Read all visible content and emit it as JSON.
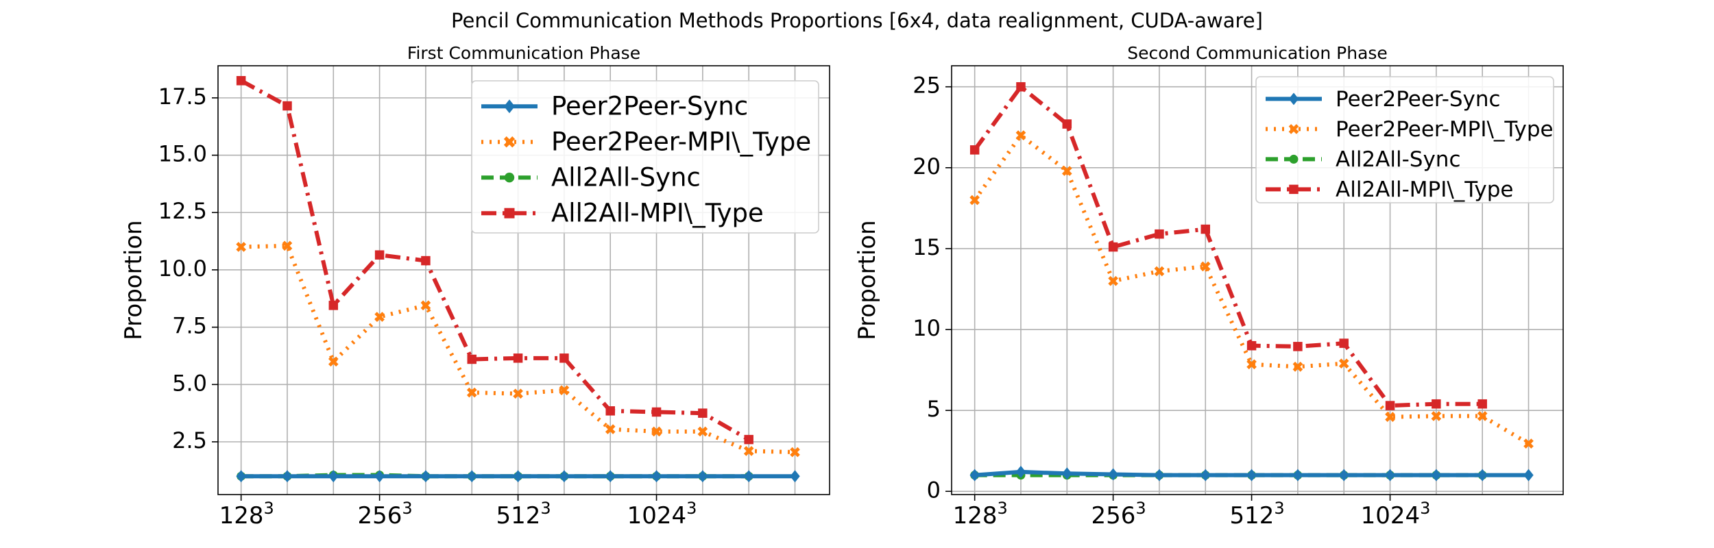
{
  "figure_title": "Pencil Communication Methods Proportions [6x4, data realignment, CUDA-aware]",
  "colors": {
    "Peer2Peer-Sync": "#1f77b4",
    "Peer2Peer-MPI\\_Type": "#ff7f0e",
    "All2All-Sync": "#2ca02c",
    "All2All-MPI\\_Type": "#d62728"
  },
  "chart_data": [
    {
      "type": "line",
      "title": "First Communication Phase",
      "xlabel": "",
      "ylabel": "Proportion",
      "x": [
        1,
        2,
        3,
        4,
        5,
        6,
        7,
        8,
        9,
        10,
        11,
        12,
        13
      ],
      "xticks": [
        1,
        4,
        7,
        10
      ],
      "xticklabels": [
        "128",
        "256",
        "512",
        "1024"
      ],
      "xtick_exponent": "3",
      "xlim": [
        0.5,
        13.75
      ],
      "ylim": [
        0.2,
        18.9
      ],
      "yticks": [
        2.5,
        5.0,
        7.5,
        10.0,
        12.5,
        15.0,
        17.5
      ],
      "yticklabels": [
        "2.5",
        "5.0",
        "7.5",
        "10.0",
        "12.5",
        "15.0",
        "17.5"
      ],
      "grid": true,
      "legend": "top-right",
      "series": [
        {
          "name": "Peer2Peer-Sync",
          "values": [
            1.0,
            1.0,
            1.0,
            1.0,
            1.0,
            1.0,
            1.0,
            1.0,
            1.0,
            1.0,
            1.0,
            1.0,
            1.0
          ]
        },
        {
          "name": "Peer2Peer-MPI\\_Type",
          "values": [
            11.0,
            11.05,
            6.0,
            7.95,
            8.45,
            4.65,
            4.6,
            4.75,
            3.05,
            2.95,
            2.95,
            2.1,
            2.05
          ]
        },
        {
          "name": "All2All-Sync",
          "values": [
            1.0,
            1.0,
            1.05,
            1.05,
            1.0,
            1.0,
            1.0,
            1.0,
            1.0,
            1.0,
            1.0,
            1.0,
            null
          ]
        },
        {
          "name": "All2All-MPI\\_Type",
          "values": [
            18.25,
            17.15,
            8.45,
            10.65,
            10.4,
            6.1,
            6.15,
            6.15,
            3.85,
            3.8,
            3.75,
            2.6,
            null
          ]
        }
      ]
    },
    {
      "type": "line",
      "title": "Second Communication Phase",
      "xlabel": "",
      "ylabel": "Proportion",
      "x": [
        1,
        2,
        3,
        4,
        5,
        6,
        7,
        8,
        9,
        10,
        11,
        12,
        13
      ],
      "xticks": [
        1,
        4,
        7,
        10
      ],
      "xticklabels": [
        "128",
        "256",
        "512",
        "1024"
      ],
      "xtick_exponent": "3",
      "xlim": [
        0.5,
        13.75
      ],
      "ylim": [
        -0.2,
        26.3
      ],
      "yticks": [
        0,
        5,
        10,
        15,
        20,
        25
      ],
      "yticklabels": [
        "0",
        "5",
        "10",
        "15",
        "20",
        "25"
      ],
      "grid": true,
      "legend": "top-right",
      "series": [
        {
          "name": "Peer2Peer-Sync",
          "values": [
            1.0,
            1.2,
            1.1,
            1.05,
            1.0,
            1.0,
            1.0,
            1.0,
            1.0,
            1.0,
            1.0,
            1.0,
            1.0
          ]
        },
        {
          "name": "Peer2Peer-MPI\\_Type",
          "values": [
            18.0,
            22.0,
            19.8,
            13.0,
            13.6,
            13.9,
            7.85,
            7.7,
            7.9,
            4.6,
            4.65,
            4.65,
            2.95
          ]
        },
        {
          "name": "All2All-Sync",
          "values": [
            1.0,
            1.0,
            1.0,
            1.0,
            1.0,
            1.0,
            1.0,
            1.0,
            1.0,
            1.0,
            1.0,
            1.0,
            null
          ]
        },
        {
          "name": "All2All-MPI\\_Type",
          "values": [
            21.1,
            25.0,
            22.7,
            15.1,
            15.9,
            16.2,
            9.0,
            8.95,
            9.15,
            5.3,
            5.4,
            5.4,
            null
          ]
        }
      ]
    }
  ]
}
